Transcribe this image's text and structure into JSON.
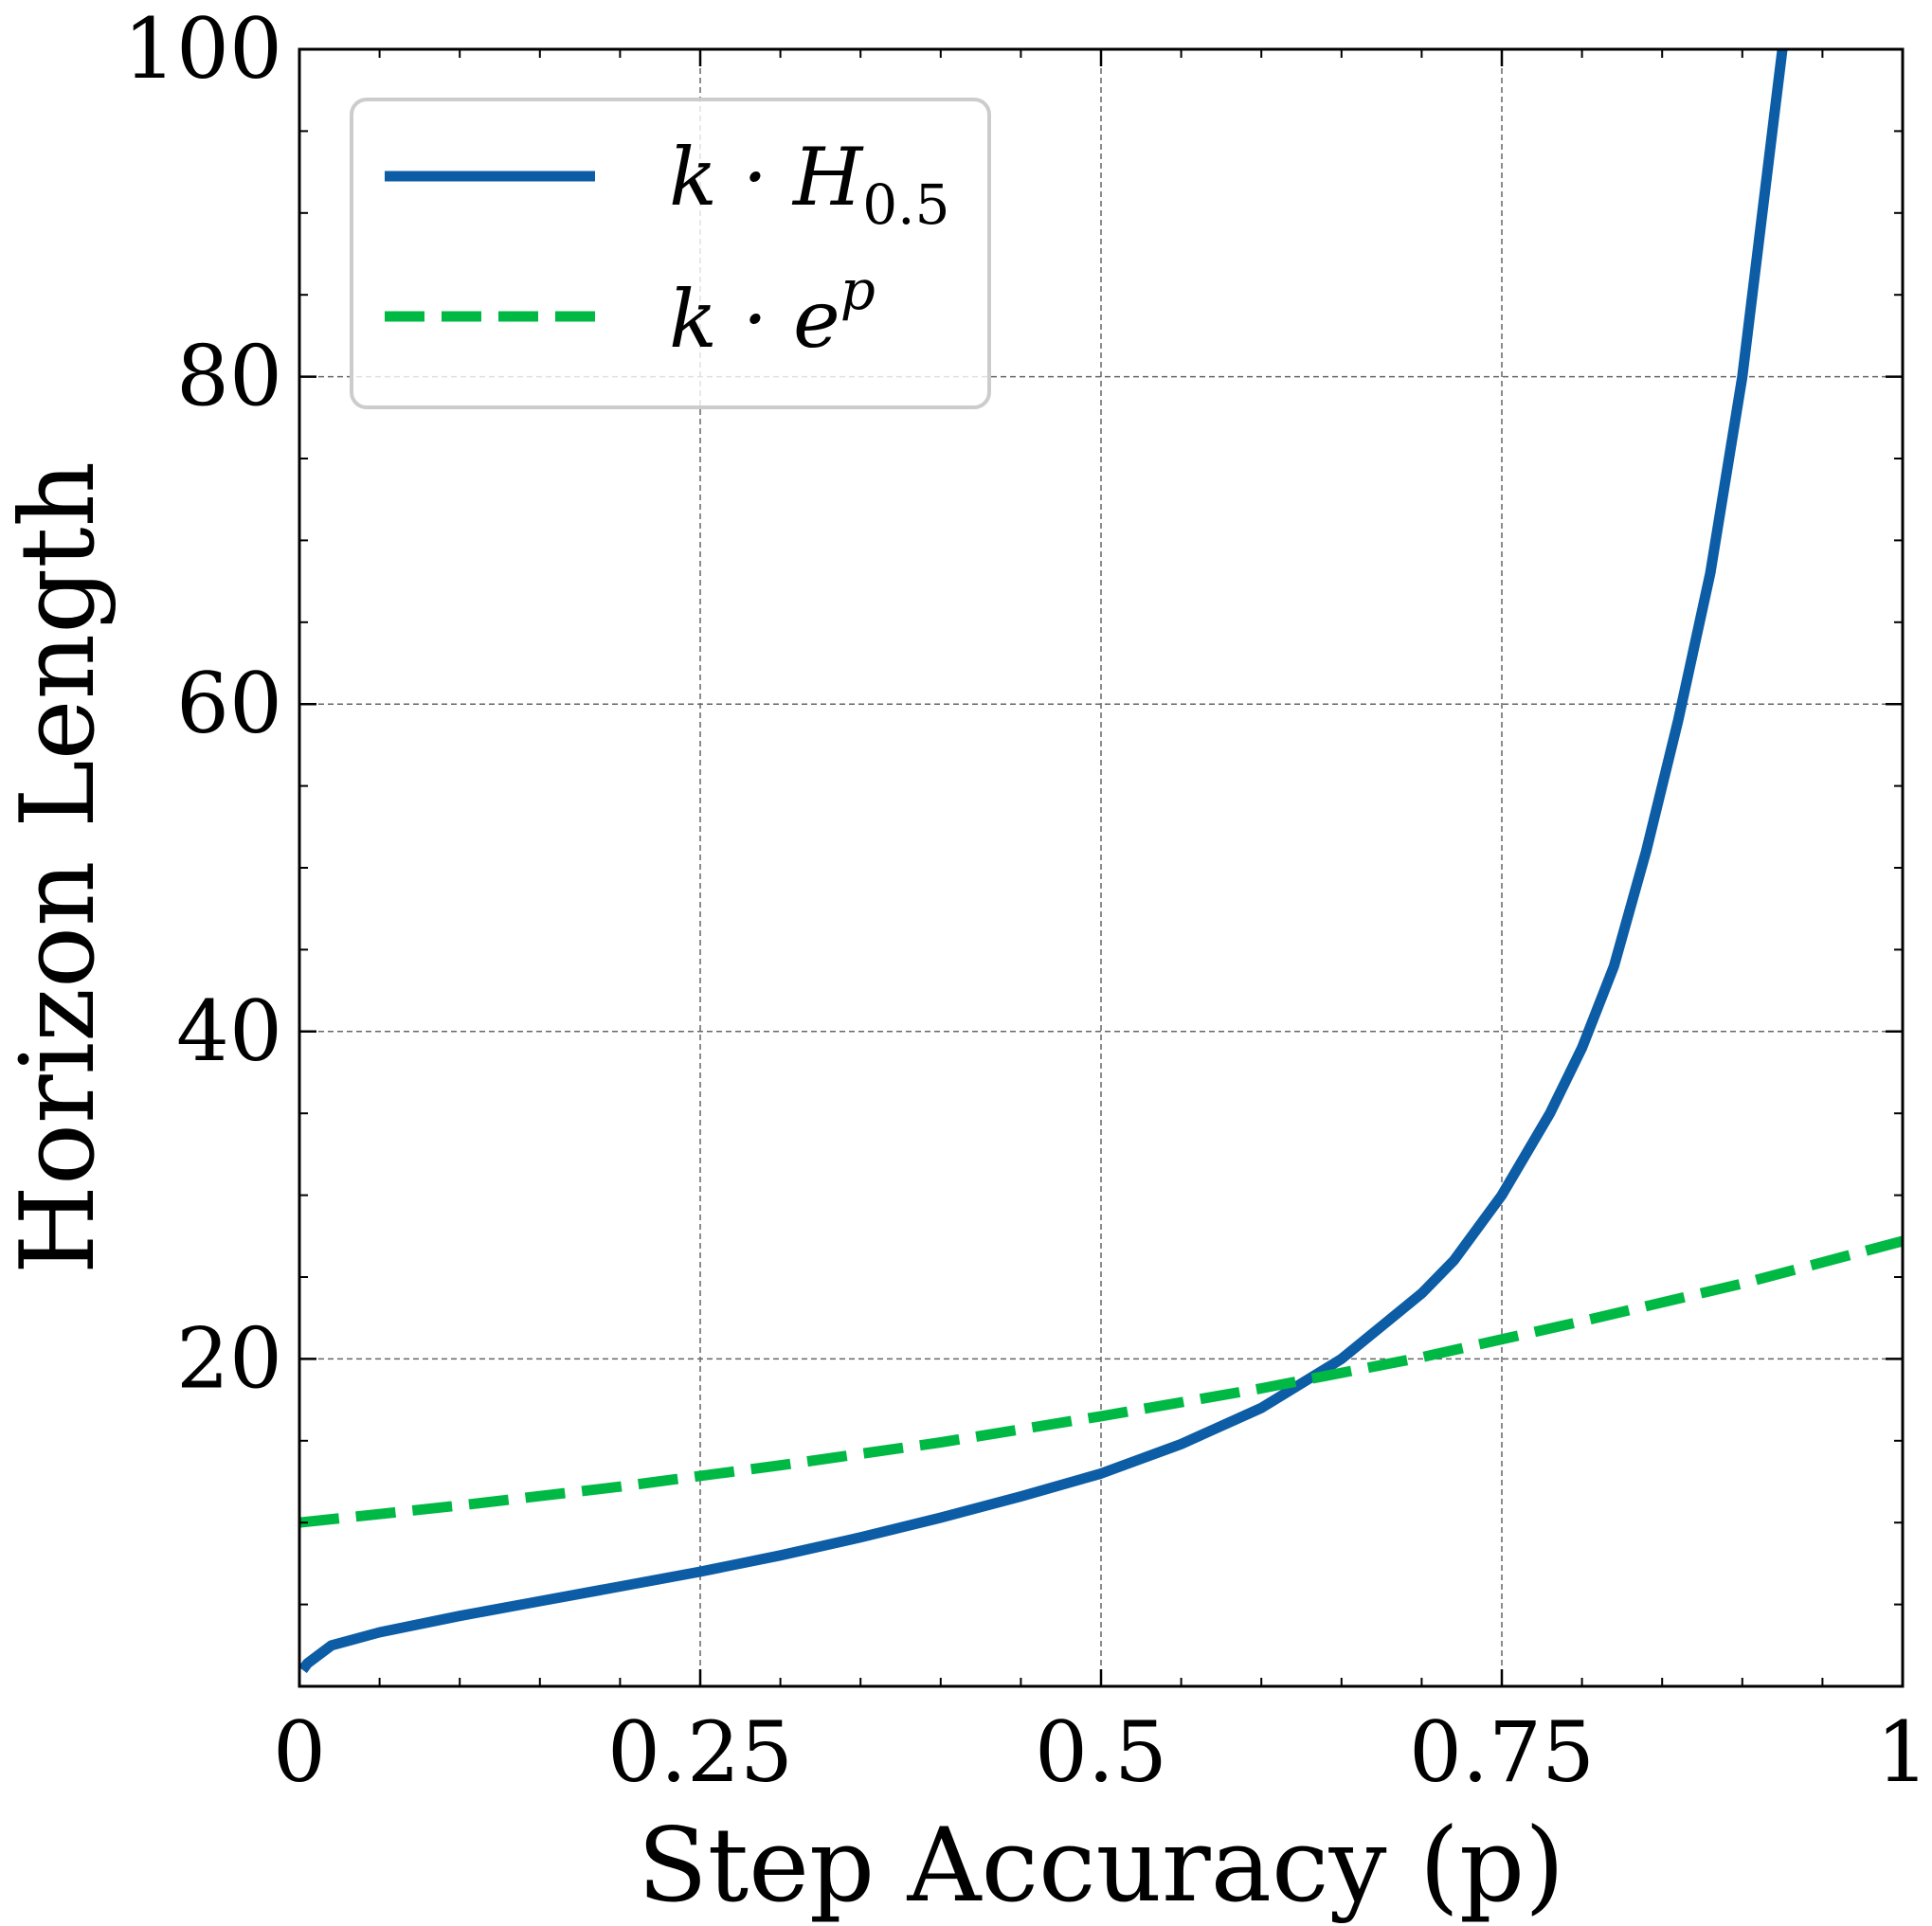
{
  "chart_data": {
    "type": "line",
    "title": "",
    "xlabel": "Step Accuracy (p)",
    "ylabel": "Horizon Length",
    "xlim": [
      0,
      1
    ],
    "ylim": [
      0,
      100
    ],
    "xticks": [
      0,
      0.25,
      0.5,
      0.75,
      1
    ],
    "xtick_labels": [
      "0",
      "0.25",
      "0.5",
      "0.75",
      "1"
    ],
    "yticks": [
      20,
      40,
      60,
      80,
      100
    ],
    "ytick_labels": [
      "20",
      "40",
      "60",
      "80",
      "100"
    ],
    "grid": true,
    "legend_position": "top-left",
    "series": [
      {
        "name": "k · H_0.5",
        "label_main": "k · H",
        "label_sub": "0.5",
        "style": "solid",
        "color": "#0C5DA5",
        "x": [
          0.002,
          0.005,
          0.02,
          0.05,
          0.1,
          0.15,
          0.2,
          0.25,
          0.3,
          0.35,
          0.4,
          0.45,
          0.5,
          0.55,
          0.6,
          0.65,
          0.7,
          0.72,
          0.75,
          0.78,
          0.8,
          0.82,
          0.84,
          0.86,
          0.88,
          0.9,
          0.91,
          0.92,
          0.925
        ],
        "y": [
          1.0,
          1.4,
          2.5,
          3.3,
          4.3,
          5.2,
          6.1,
          7.0,
          8.0,
          9.1,
          10.3,
          11.6,
          13.0,
          14.8,
          17.0,
          20.0,
          24.0,
          26.0,
          30.0,
          35.0,
          39.0,
          44.0,
          51.0,
          59.0,
          68.0,
          80.0,
          88.0,
          96.0,
          100.0
        ]
      },
      {
        "name": "k · e^p",
        "label_main": "k · e",
        "label_sup": "p",
        "style": "dashed",
        "color": "#00B945",
        "x": [
          0.0,
          0.1,
          0.2,
          0.3,
          0.4,
          0.5,
          0.6,
          0.7,
          0.8,
          0.9,
          1.0
        ],
        "y": [
          10.0,
          11.05,
          12.2,
          13.5,
          14.9,
          16.5,
          18.2,
          20.1,
          22.3,
          24.6,
          27.2
        ]
      }
    ]
  }
}
